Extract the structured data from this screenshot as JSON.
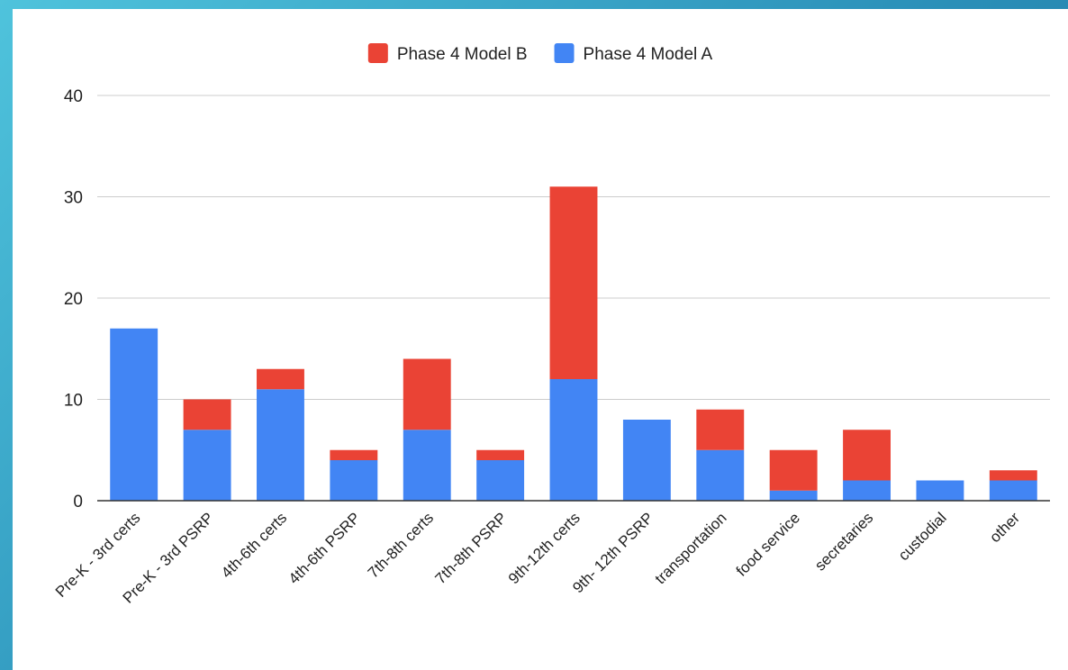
{
  "chart_data": {
    "type": "bar",
    "stacked": true,
    "categories": [
      "Pre-K - 3rd certs",
      "Pre-K - 3rd PSRP",
      "4th-6th certs",
      "4th-6th PSRP",
      "7th-8th certs",
      "7th-8th PSRP",
      "9th-12th certs",
      "9th- 12th PSRP",
      "transportation",
      "food service",
      "secretaries",
      "custodial",
      "other"
    ],
    "series": [
      {
        "name": "Phase 4 Model A",
        "color": "#4285f4",
        "values": [
          17,
          7,
          11,
          4,
          7,
          4,
          12,
          8,
          5,
          1,
          2,
          2,
          2
        ]
      },
      {
        "name": "Phase 4 Model B",
        "color": "#ea4335",
        "values": [
          0,
          3,
          2,
          1,
          7,
          1,
          19,
          0,
          4,
          4,
          5,
          0,
          1
        ]
      }
    ],
    "legend_order": [
      "Phase 4 Model B",
      "Phase 4 Model A"
    ],
    "legend_position": "top",
    "ylim": [
      0,
      40
    ],
    "yticks": [
      0,
      10,
      20,
      30,
      40
    ],
    "grid": true,
    "title": "",
    "xlabel": "",
    "ylabel": ""
  }
}
